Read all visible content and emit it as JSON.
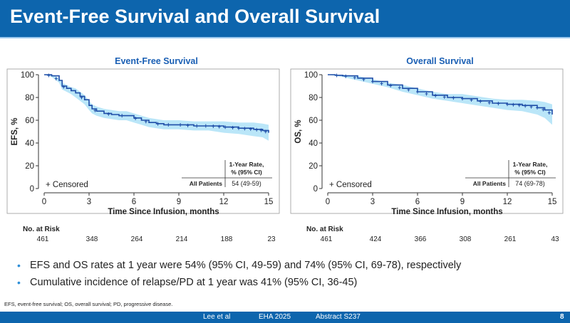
{
  "header": {
    "title": "Event-Free Survival and Overall Survival"
  },
  "chart_data": [
    {
      "type": "line",
      "title": "Event-Free Survival",
      "xlabel": "Time Since Infusion, months",
      "ylabel": "EFS, %",
      "xlim": [
        0,
        15
      ],
      "ylim": [
        0,
        100
      ],
      "xticks": [
        0,
        3,
        6,
        9,
        12,
        15
      ],
      "yticks": [
        0,
        20,
        40,
        60,
        80,
        100
      ],
      "legend": "+ Censored",
      "table_header": "1-Year Rate, % (95% CI)",
      "table_row_label": "All Patients",
      "table_value": "54 (49-59)",
      "risk_label": "No. at Risk",
      "at_risk": [
        "461",
        "348",
        "264",
        "214",
        "188",
        "23"
      ],
      "series": [
        {
          "name": "All Patients",
          "x": [
            0,
            0.5,
            1,
            1.2,
            1.5,
            1.8,
            2.1,
            2.4,
            2.7,
            3.0,
            3.2,
            3.5,
            4.0,
            4.5,
            5.0,
            5.5,
            6.0,
            6.5,
            7.0,
            7.5,
            8.0,
            9.0,
            10.0,
            11.0,
            12.0,
            13.0,
            14.0,
            14.6,
            15.0
          ],
          "y": [
            100,
            99,
            95,
            90,
            88,
            86,
            84,
            81,
            78,
            73,
            70,
            68,
            66,
            65,
            64,
            64,
            62,
            60,
            58,
            57,
            56,
            56,
            55,
            55,
            54,
            53,
            52,
            51,
            49
          ],
          "lower": [
            100,
            98,
            93,
            87,
            85,
            83,
            80,
            77,
            74,
            69,
            66,
            64,
            62,
            61,
            60,
            60,
            58,
            56,
            54,
            53,
            52,
            52,
            51,
            51,
            49,
            48,
            46,
            45,
            42
          ],
          "upper": [
            100,
            100,
            97,
            93,
            91,
            89,
            88,
            85,
            82,
            77,
            74,
            72,
            70,
            69,
            68,
            68,
            66,
            64,
            62,
            61,
            60,
            60,
            59,
            59,
            59,
            58,
            58,
            57,
            56
          ],
          "censored_x": [
            0.3,
            0.8,
            1.3,
            2.5,
            3.4,
            4.3,
            5.2,
            6.1,
            6.8,
            7.6,
            8.3,
            9.1,
            9.6,
            10.2,
            10.8,
            11.3,
            11.7,
            12.1,
            12.6,
            13.0,
            13.4,
            13.8,
            14.2,
            14.5,
            14.8
          ]
        }
      ]
    },
    {
      "type": "line",
      "title": "Overall Survival",
      "xlabel": "Time Since Infusion, months",
      "ylabel": "OS, %",
      "xlim": [
        0,
        15
      ],
      "ylim": [
        0,
        100
      ],
      "xticks": [
        0,
        3,
        6,
        9,
        12,
        15
      ],
      "yticks": [
        0,
        20,
        40,
        60,
        80,
        100
      ],
      "legend": "+ Censored",
      "table_header": "1-Year Rate, % (95% CI)",
      "table_row_label": "All Patients",
      "table_value": "74 (69-78)",
      "risk_label": "No. at Risk",
      "at_risk": [
        "461",
        "424",
        "366",
        "308",
        "261",
        "43"
      ],
      "series": [
        {
          "name": "All Patients",
          "x": [
            0,
            0.5,
            1,
            2,
            3,
            4,
            5,
            6,
            7,
            8,
            9,
            10,
            11,
            12,
            13,
            14,
            14.5,
            15
          ],
          "y": [
            100,
            99.5,
            99,
            97,
            94,
            91,
            88,
            85,
            82,
            80,
            79,
            77,
            75,
            74,
            73,
            71,
            69,
            65
          ],
          "lower": [
            100,
            99,
            98,
            95,
            92,
            89,
            85,
            82,
            79,
            77,
            75,
            73,
            71,
            69,
            68,
            65,
            62,
            56
          ],
          "upper": [
            100,
            100,
            100,
            99,
            96,
            93,
            91,
            88,
            85,
            83,
            83,
            81,
            79,
            78,
            78,
            77,
            76,
            74
          ],
          "censored_x": [
            0.6,
            1.2,
            1.8,
            2.4,
            3.0,
            3.6,
            4.2,
            4.8,
            5.4,
            6.0,
            6.6,
            7.2,
            7.8,
            8.4,
            9.0,
            9.6,
            10.2,
            10.8,
            11.4,
            12.0,
            12.4,
            12.8,
            13.2,
            13.6,
            14.0,
            14.4,
            14.8
          ]
        }
      ]
    }
  ],
  "bullets": [
    "EFS and OS rates at 1 year were 54% (95% CI, 49-59) and 74% (95% CI, 69-78), respectively",
    "Cumulative incidence of relapse/PD at 1 year was 41% (95% CI, 36-45)"
  ],
  "footnote": "EFS, event-free survival; OS, overall survival; PD, progressive disease.",
  "footer": {
    "author": "Lee et al",
    "meeting": "EHA 2025",
    "abstract": "Abstract S237",
    "page": "8"
  },
  "colors": {
    "brand": "#0d65ad",
    "line": "#1f4ea8",
    "band": "#aee2f7",
    "bullet": "#2e8fd8",
    "title": "#1a5fb4"
  }
}
